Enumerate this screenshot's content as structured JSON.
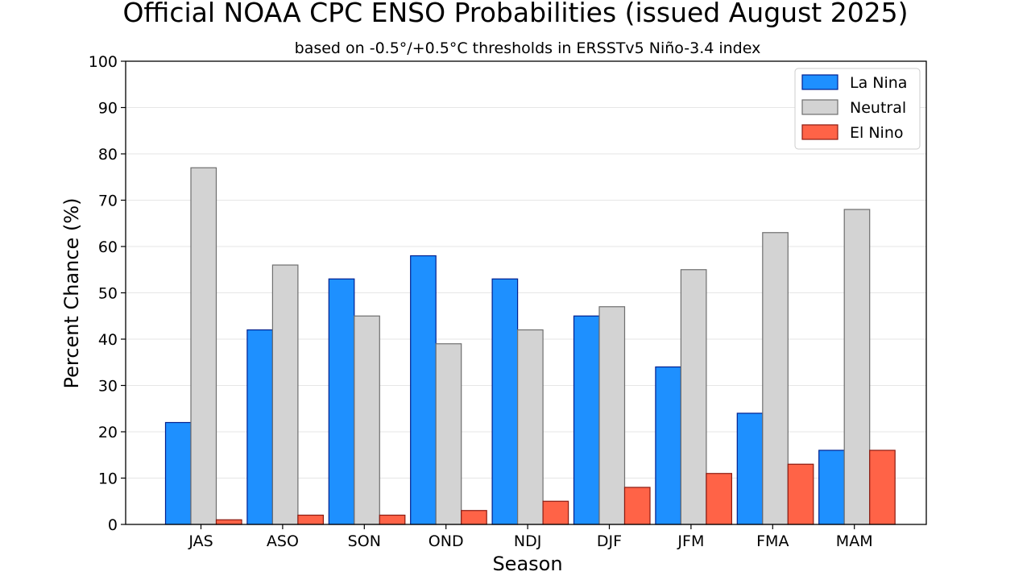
{
  "chart_data": {
    "type": "bar",
    "title": "Official NOAA CPC ENSO Probabilities (issued August 2025)",
    "subtitle": "based on -0.5°/+0.5°C thresholds in ERSSTv5 Niño-3.4 index",
    "xlabel": "Season",
    "ylabel": "Percent Chance (%)",
    "ylim": [
      0,
      100
    ],
    "yticks": [
      0,
      10,
      20,
      30,
      40,
      50,
      60,
      70,
      80,
      90,
      100
    ],
    "grid": "horizontal",
    "legend_position": "top-right",
    "categories": [
      "JAS",
      "ASO",
      "SON",
      "OND",
      "NDJ",
      "DJF",
      "JFM",
      "FMA",
      "MAM"
    ],
    "series": [
      {
        "name": "La Nina",
        "color": "#1e90ff",
        "edge": "#00208f",
        "values": [
          22,
          42,
          53,
          58,
          53,
          45,
          34,
          24,
          16
        ]
      },
      {
        "name": "Neutral",
        "color": "#d3d3d3",
        "edge": "#6f6f6f",
        "values": [
          77,
          56,
          45,
          39,
          42,
          47,
          55,
          63,
          68
        ]
      },
      {
        "name": "El Nino",
        "color": "#ff6347",
        "edge": "#8b1a10",
        "values": [
          1,
          2,
          2,
          3,
          5,
          8,
          11,
          13,
          16
        ]
      }
    ]
  }
}
